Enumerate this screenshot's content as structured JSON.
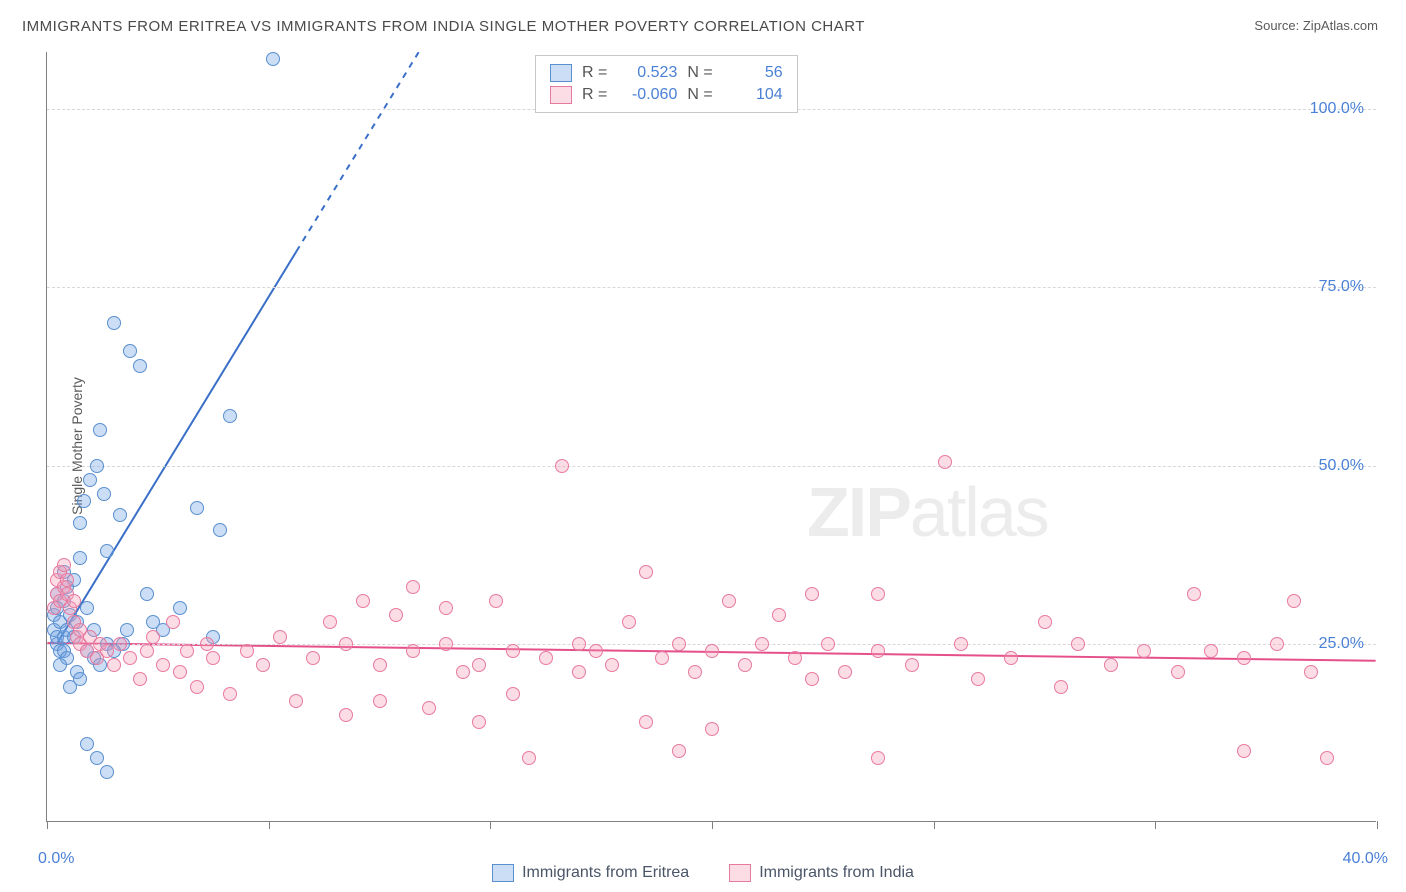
{
  "title": "IMMIGRANTS FROM ERITREA VS IMMIGRANTS FROM INDIA SINGLE MOTHER POVERTY CORRELATION CHART",
  "source_label": "Source:",
  "source_value": "ZipAtlas.com",
  "ylabel": "Single Mother Poverty",
  "watermark_bold": "ZIP",
  "watermark_thin": "atlas",
  "chart": {
    "type": "scatter",
    "xlim": [
      0,
      40
    ],
    "ylim": [
      0,
      108
    ],
    "x_tick_positions": [
      0,
      6.67,
      13.33,
      20,
      26.67,
      33.33,
      40
    ],
    "x_min_label": "0.0%",
    "x_max_label": "40.0%",
    "y_ticks": [
      {
        "v": 25,
        "label": "25.0%"
      },
      {
        "v": 50,
        "label": "50.0%"
      },
      {
        "v": 75,
        "label": "75.0%"
      },
      {
        "v": 100,
        "label": "100.0%"
      }
    ],
    "background_color": "#ffffff",
    "grid_color": "#d8d8d8",
    "series": [
      {
        "name": "Immigrants from Eritrea",
        "fill": "rgba(110,160,225,0.35)",
        "stroke": "#5a8fd0",
        "r_label": "R =",
        "r_value": "0.523",
        "n_label": "N =",
        "n_value": "56",
        "trend": {
          "x1": 0.3,
          "y1": 25,
          "x2": 7.5,
          "y2": 80,
          "dash_to_x": 12.5,
          "dash_to_y": 118,
          "color": "#3a6fc8",
          "width": 2
        },
        "points": [
          [
            0.2,
            27
          ],
          [
            0.2,
            29
          ],
          [
            0.3,
            25
          ],
          [
            0.3,
            26
          ],
          [
            0.3,
            30
          ],
          [
            0.3,
            32
          ],
          [
            0.4,
            24
          ],
          [
            0.4,
            28
          ],
          [
            0.5,
            26
          ],
          [
            0.5,
            31
          ],
          [
            0.5,
            35
          ],
          [
            0.6,
            27
          ],
          [
            0.6,
            33
          ],
          [
            0.7,
            29
          ],
          [
            0.8,
            26
          ],
          [
            0.8,
            34
          ],
          [
            0.9,
            28
          ],
          [
            1.0,
            37
          ],
          [
            1.0,
            42
          ],
          [
            1.1,
            45
          ],
          [
            1.2,
            30
          ],
          [
            1.3,
            48
          ],
          [
            1.4,
            27
          ],
          [
            1.5,
            50
          ],
          [
            1.6,
            55
          ],
          [
            1.7,
            46
          ],
          [
            1.8,
            38
          ],
          [
            2.0,
            70
          ],
          [
            2.2,
            43
          ],
          [
            2.3,
            25
          ],
          [
            2.4,
            27
          ],
          [
            2.5,
            66
          ],
          [
            2.8,
            64
          ],
          [
            3.0,
            32
          ],
          [
            3.2,
            28
          ],
          [
            3.5,
            27
          ],
          [
            4.0,
            30
          ],
          [
            4.5,
            44
          ],
          [
            5.0,
            26
          ],
          [
            5.2,
            41
          ],
          [
            5.5,
            57
          ],
          [
            1.2,
            24
          ],
          [
            1.4,
            23
          ],
          [
            1.6,
            22
          ],
          [
            0.9,
            21
          ],
          [
            0.7,
            19
          ],
          [
            1.0,
            20
          ],
          [
            1.8,
            25
          ],
          [
            2.0,
            24
          ],
          [
            1.5,
            9
          ],
          [
            1.8,
            7
          ],
          [
            1.2,
            11
          ],
          [
            0.5,
            24
          ],
          [
            0.6,
            23
          ],
          [
            0.4,
            22
          ],
          [
            6.8,
            107
          ]
        ]
      },
      {
        "name": "Immigrants from India",
        "fill": "rgba(245,155,180,0.35)",
        "stroke": "#e77aa0",
        "r_label": "R =",
        "r_value": "-0.060",
        "n_label": "N =",
        "n_value": "104",
        "trend": {
          "x1": 0,
          "y1": 25,
          "x2": 40,
          "y2": 22.5,
          "color": "#e54f8a",
          "width": 2
        },
        "points": [
          [
            0.2,
            30
          ],
          [
            0.3,
            32
          ],
          [
            0.3,
            34
          ],
          [
            0.4,
            31
          ],
          [
            0.4,
            35
          ],
          [
            0.5,
            33
          ],
          [
            0.5,
            36
          ],
          [
            0.6,
            32
          ],
          [
            0.6,
            34
          ],
          [
            0.7,
            30
          ],
          [
            0.8,
            28
          ],
          [
            0.8,
            31
          ],
          [
            0.9,
            26
          ],
          [
            1.0,
            25
          ],
          [
            1.0,
            27
          ],
          [
            1.2,
            24
          ],
          [
            1.3,
            26
          ],
          [
            1.5,
            23
          ],
          [
            1.6,
            25
          ],
          [
            1.8,
            24
          ],
          [
            2.0,
            22
          ],
          [
            2.2,
            25
          ],
          [
            2.5,
            23
          ],
          [
            2.8,
            20
          ],
          [
            3.0,
            24
          ],
          [
            3.2,
            26
          ],
          [
            3.5,
            22
          ],
          [
            3.8,
            28
          ],
          [
            4.0,
            21
          ],
          [
            4.2,
            24
          ],
          [
            4.5,
            19
          ],
          [
            4.8,
            25
          ],
          [
            5.0,
            23
          ],
          [
            5.5,
            18
          ],
          [
            6.0,
            24
          ],
          [
            6.5,
            22
          ],
          [
            7.0,
            26
          ],
          [
            7.5,
            17
          ],
          [
            8.0,
            23
          ],
          [
            8.5,
            28
          ],
          [
            9.0,
            25
          ],
          [
            9.0,
            15
          ],
          [
            9.5,
            31
          ],
          [
            10.0,
            22
          ],
          [
            10.0,
            17
          ],
          [
            10.5,
            29
          ],
          [
            11.0,
            24
          ],
          [
            11.0,
            33
          ],
          [
            11.5,
            16
          ],
          [
            12.0,
            25
          ],
          [
            12.0,
            30
          ],
          [
            12.5,
            21
          ],
          [
            13.0,
            14
          ],
          [
            13.0,
            22
          ],
          [
            13.5,
            31
          ],
          [
            14.0,
            24
          ],
          [
            14.0,
            18
          ],
          [
            14.5,
            9
          ],
          [
            15.0,
            23
          ],
          [
            15.5,
            50
          ],
          [
            16.0,
            25
          ],
          [
            16.0,
            21
          ],
          [
            16.5,
            24
          ],
          [
            17.0,
            22
          ],
          [
            17.5,
            28
          ],
          [
            18.0,
            35
          ],
          [
            18.0,
            14
          ],
          [
            18.5,
            23
          ],
          [
            19.0,
            25
          ],
          [
            19.0,
            10
          ],
          [
            19.5,
            21
          ],
          [
            20.0,
            24
          ],
          [
            20.0,
            13
          ],
          [
            20.5,
            31
          ],
          [
            21.0,
            22
          ],
          [
            21.5,
            25
          ],
          [
            22.0,
            29
          ],
          [
            22.5,
            23
          ],
          [
            23.0,
            20
          ],
          [
            23.0,
            32
          ],
          [
            23.5,
            25
          ],
          [
            24.0,
            21
          ],
          [
            25.0,
            24
          ],
          [
            25.0,
            32
          ],
          [
            25.0,
            9
          ],
          [
            26.0,
            22
          ],
          [
            27.0,
            50.5
          ],
          [
            27.5,
            25
          ],
          [
            28.0,
            20
          ],
          [
            29.0,
            23
          ],
          [
            30.0,
            28
          ],
          [
            30.5,
            19
          ],
          [
            31.0,
            25
          ],
          [
            32.0,
            22
          ],
          [
            33.0,
            24
          ],
          [
            34.0,
            21
          ],
          [
            34.5,
            32
          ],
          [
            35.0,
            24
          ],
          [
            36.0,
            23
          ],
          [
            36.0,
            10
          ],
          [
            37.0,
            25
          ],
          [
            37.5,
            31
          ],
          [
            38.0,
            21
          ],
          [
            38.5,
            9
          ]
        ]
      }
    ]
  }
}
